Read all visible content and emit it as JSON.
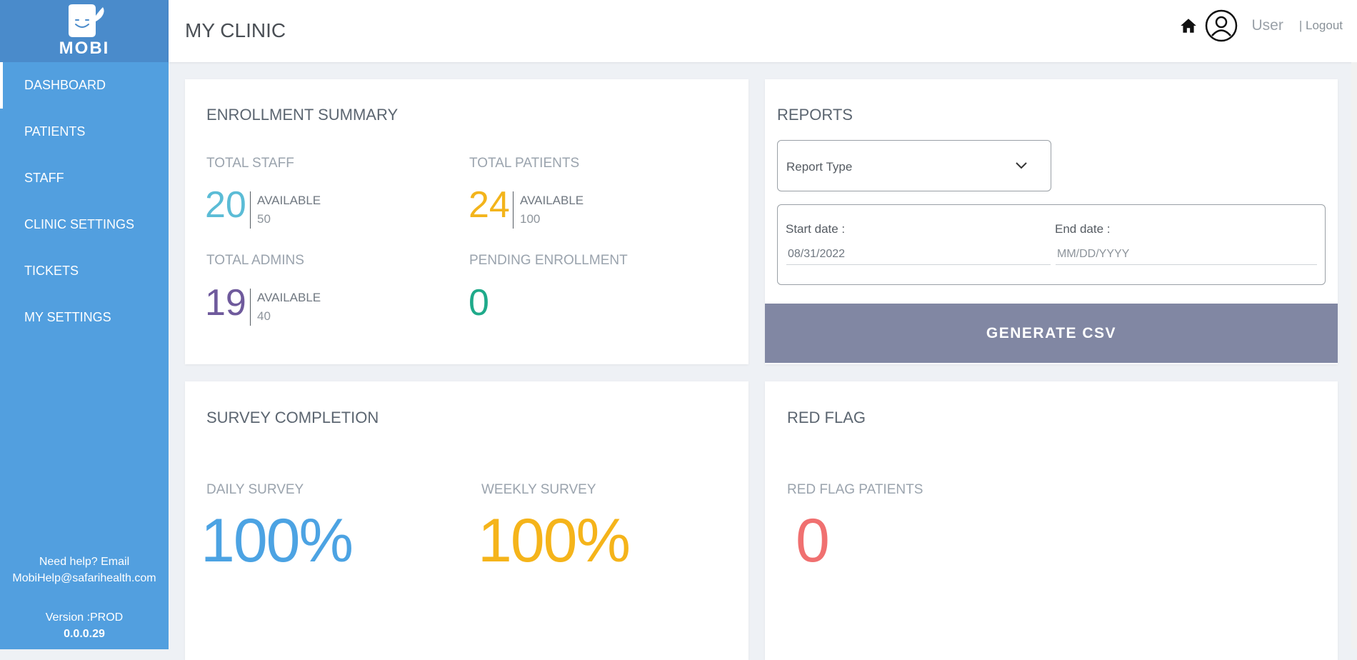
{
  "brand": {
    "name": "MOBI"
  },
  "header": {
    "title": "MY CLINIC",
    "user": "User",
    "logout": "| Logout"
  },
  "sidebar": {
    "items": [
      {
        "label": "DASHBOARD",
        "active": true
      },
      {
        "label": "PATIENTS"
      },
      {
        "label": "STAFF"
      },
      {
        "label": "CLINIC SETTINGS"
      },
      {
        "label": "TICKETS"
      },
      {
        "label": "MY SETTINGS"
      }
    ],
    "help_line1": "Need help? Email",
    "help_line2": "MobiHelp@safarihealth.com",
    "version_label": "Version :PROD",
    "version_number": "0.0.0.29"
  },
  "enrollment": {
    "title": "ENROLLMENT SUMMARY",
    "total_staff": {
      "label": "TOTAL STAFF",
      "value": "20",
      "available_label": "AVAILABLE",
      "available": "50"
    },
    "total_patients": {
      "label": "TOTAL PATIENTS",
      "value": "24",
      "available_label": "AVAILABLE",
      "available": "100"
    },
    "total_admins": {
      "label": "TOTAL ADMINS",
      "value": "19",
      "available_label": "AVAILABLE",
      "available": "40"
    },
    "pending": {
      "label": "PENDING ENROLLMENT",
      "value": "0"
    }
  },
  "reports": {
    "title": "REPORTS",
    "report_type_placeholder": "Report Type",
    "start_label": "Start date :",
    "start_value": "08/31/2022",
    "end_label": "End date :",
    "end_placeholder": "MM/DD/YYYY",
    "generate_label": "GENERATE CSV"
  },
  "survey": {
    "title": "SURVEY COMPLETION",
    "daily_label": "DAILY SURVEY",
    "daily_value": "100%",
    "weekly_label": "WEEKLY SURVEY",
    "weekly_value": "100%"
  },
  "red_flag": {
    "title": "RED FLAG",
    "label": "RED FLAG PATIENTS",
    "value": "0"
  },
  "colors": {
    "sidebar": "#529fdf",
    "staff": "#5bbcd6",
    "patients": "#f3b41b",
    "admins": "#6f5a9c",
    "pending": "#1faa8a",
    "daily": "#4ca3e3",
    "weekly": "#f5b41a",
    "redflag": "#f07070",
    "generate_button": "#8187a3"
  },
  "icons": {
    "logo": "whale-logo-icon",
    "home": "home-icon",
    "user": "user-circle-icon",
    "chevron": "chevron-down-icon"
  }
}
